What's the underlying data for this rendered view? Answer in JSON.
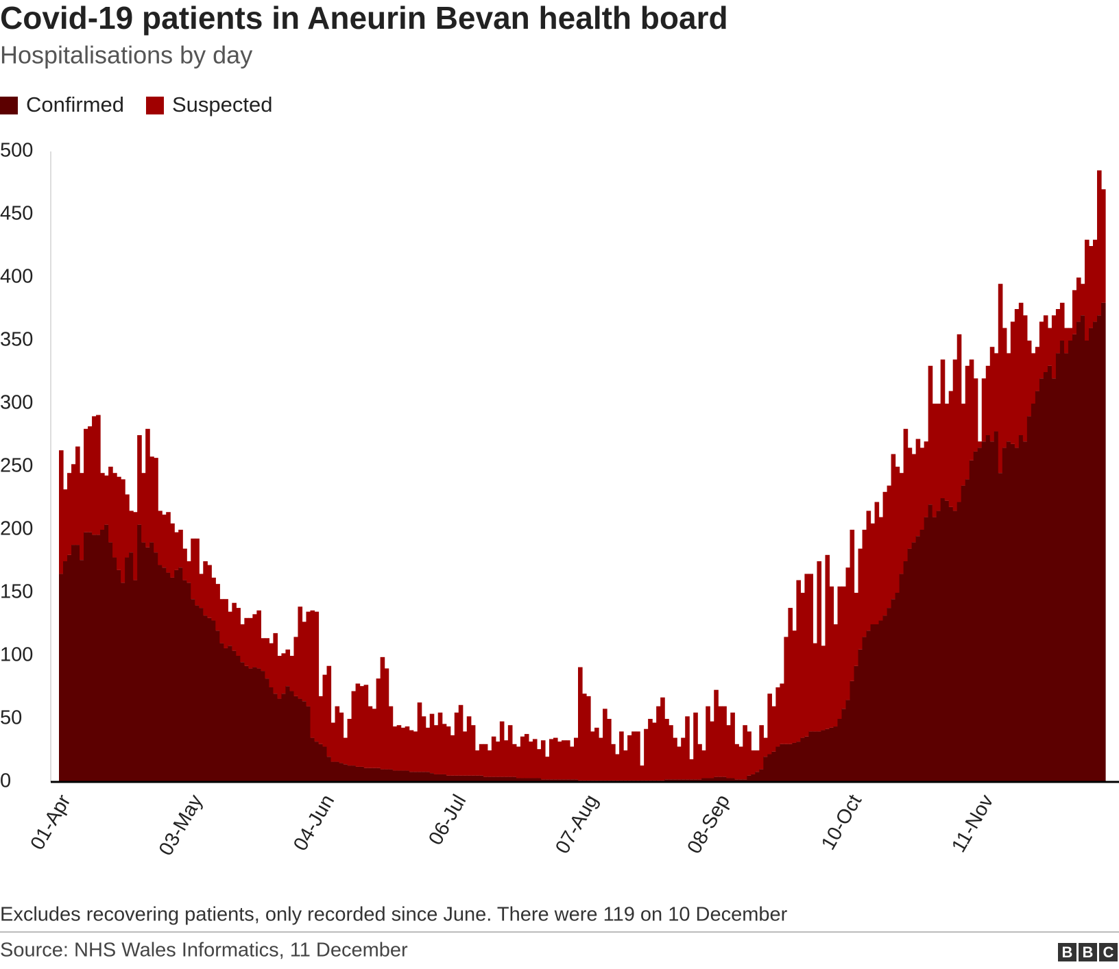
{
  "chart_data": {
    "type": "stacked_bar",
    "title": "Covid-19 patients in Aneurin Bevan health board",
    "subtitle": "Hospitalisations by day",
    "note": "Excludes recovering patients, only recorded since June. There were 119 on 10 December",
    "source": "Source: NHS Wales Informatics, 11 December",
    "categories": [
      "01-Apr",
      null,
      null,
      null,
      null,
      null,
      null,
      null,
      null,
      null,
      null,
      null,
      null,
      null,
      null,
      null,
      null,
      null,
      null,
      null,
      null,
      null,
      null,
      null,
      null,
      null,
      null,
      null,
      null,
      null,
      null,
      null,
      "03-May",
      null,
      null,
      null,
      null,
      null,
      null,
      null,
      null,
      null,
      null,
      null,
      null,
      null,
      null,
      null,
      null,
      null,
      null,
      null,
      null,
      null,
      null,
      null,
      null,
      null,
      null,
      null,
      null,
      null,
      null,
      null,
      "04-Jun",
      null,
      null,
      null,
      null,
      null,
      null,
      null,
      null,
      null,
      null,
      null,
      null,
      null,
      null,
      null,
      null,
      null,
      null,
      null,
      null,
      null,
      null,
      null,
      null,
      null,
      null,
      null,
      null,
      null,
      null,
      null,
      "06-Jul",
      null,
      null,
      null,
      null,
      null,
      null,
      null,
      null,
      null,
      null,
      null,
      null,
      null,
      null,
      null,
      null,
      null,
      null,
      null,
      null,
      null,
      null,
      null,
      null,
      null,
      null,
      null,
      null,
      null,
      null,
      null,
      "07-Aug",
      null,
      null,
      null,
      null,
      null,
      null,
      null,
      null,
      null,
      null,
      null,
      null,
      null,
      null,
      null,
      null,
      null,
      null,
      null,
      null,
      null,
      null,
      null,
      null,
      null,
      null,
      null,
      null,
      null,
      null,
      null,
      "08-Sep",
      null,
      null,
      null,
      null,
      null,
      null,
      null,
      null,
      null,
      null,
      null,
      null,
      null,
      null,
      null,
      null,
      null,
      null,
      null,
      null,
      null,
      null,
      null,
      null,
      null,
      null,
      null,
      null,
      null,
      null,
      null,
      "10-Oct",
      null,
      null,
      null,
      null,
      null,
      null,
      null,
      null,
      null,
      null,
      null,
      null,
      null,
      null,
      null,
      null,
      null,
      null,
      null,
      null,
      null,
      null,
      null,
      null,
      null,
      null,
      null,
      null,
      null,
      null,
      null,
      "11-Nov",
      null,
      null,
      null,
      null,
      null,
      null,
      null,
      null,
      null,
      null,
      null,
      null,
      null,
      null,
      null,
      null,
      null,
      null,
      null,
      null,
      null,
      null,
      null,
      null,
      null,
      null,
      null,
      null,
      null
    ],
    "series": [
      {
        "name": "Confirmed",
        "color": "#5c0000",
        "values": [
          165,
          175,
          180,
          188,
          188,
          176,
          198,
          198,
          196,
          196,
          200,
          204,
          190,
          178,
          168,
          158,
          178,
          182,
          160,
          204,
          190,
          186,
          190,
          182,
          172,
          170,
          166,
          162,
          168,
          170,
          160,
          158,
          145,
          140,
          138,
          132,
          130,
          128,
          120,
          110,
          106,
          108,
          104,
          100,
          95,
          92,
          90,
          91,
          90,
          88,
          82,
          75,
          70,
          66,
          70,
          76,
          72,
          68,
          66,
          64,
          60,
          35,
          32,
          30,
          28,
          20,
          16,
          16,
          15,
          14,
          13,
          13,
          12,
          12,
          11,
          11,
          11,
          11,
          10,
          10,
          10,
          9,
          9,
          9,
          9,
          8,
          8,
          8,
          8,
          8,
          7,
          6,
          6,
          6,
          5,
          5,
          5,
          5,
          5,
          5,
          5,
          5,
          5,
          4,
          4,
          4,
          4,
          4,
          4,
          4,
          4,
          3,
          3,
          3,
          3,
          3,
          3,
          2,
          2,
          2,
          2,
          2,
          2,
          2,
          2,
          2,
          1,
          1,
          1,
          1,
          1,
          1,
          1,
          1,
          1,
          1,
          1,
          1,
          1,
          1,
          1,
          1,
          1,
          1,
          1,
          1,
          1,
          2,
          2,
          2,
          2,
          2,
          2,
          2,
          2,
          2,
          3,
          3,
          3,
          4,
          4,
          4,
          3,
          3,
          2,
          2,
          2,
          5,
          6,
          8,
          10,
          20,
          22,
          24,
          28,
          30,
          30,
          30,
          31,
          32,
          35,
          36,
          40,
          40,
          40,
          41,
          42,
          43,
          44,
          50,
          58,
          65,
          80,
          92,
          105,
          115,
          120,
          125,
          125,
          128,
          132,
          138,
          145,
          150,
          165,
          175,
          185,
          190,
          195,
          200,
          210,
          220,
          210,
          215,
          225,
          223,
          218,
          215,
          222,
          235,
          240,
          255,
          262,
          265,
          270,
          275,
          270,
          278,
          245,
          265,
          270,
          268,
          265,
          275,
          270,
          290,
          300,
          310,
          320,
          325,
          330,
          320,
          340,
          350,
          340,
          350,
          355,
          365,
          370,
          350,
          360,
          365,
          370,
          380
        ]
      },
      {
        "name": "Suspected",
        "color": "#a00000",
        "values": [
          98,
          57,
          65,
          64,
          78,
          69,
          82,
          84,
          94,
          95,
          45,
          39,
          60,
          67,
          74,
          82,
          50,
          33,
          54,
          71,
          55,
          94,
          68,
          75,
          43,
          42,
          48,
          43,
          30,
          30,
          25,
          17,
          48,
          53,
          27,
          43,
          42,
          34,
          37,
          35,
          39,
          27,
          38,
          38,
          30,
          38,
          40,
          42,
          46,
          26,
          32,
          35,
          48,
          34,
          32,
          29,
          28,
          47,
          73,
          63,
          75,
          101,
          103,
          38,
          57,
          72,
          31,
          44,
          40,
          21,
          37,
          59,
          66,
          64,
          66,
          49,
          47,
          71,
          89,
          80,
          50,
          35,
          36,
          34,
          35,
          33,
          32,
          55,
          44,
          35,
          47,
          39,
          49,
          40,
          39,
          32,
          50,
          56,
          35,
          47,
          40,
          20,
          25,
          26,
          21,
          32,
          28,
          44,
          29,
          41,
          26,
          25,
          33,
          35,
          29,
          31,
          23,
          31,
          18,
          32,
          33,
          30,
          31,
          31,
          26,
          33,
          90,
          69,
          67,
          39,
          42,
          34,
          57,
          49,
          29,
          21,
          39,
          24,
          36,
          39,
          39,
          12,
          41,
          49,
          46,
          59,
          66,
          48,
          43,
          33,
          26,
          33,
          50,
          16,
          53,
          28,
          22,
          57,
          45,
          69,
          56,
          56,
          42,
          52,
          28,
          26,
          43,
          35,
          19,
          17,
          35,
          15,
          48,
          36,
          47,
          48,
          85,
          108,
          89,
          128,
          115,
          129,
          125,
          70,
          135,
          67,
          138,
          112,
          81,
          105,
          97,
          105,
          120,
          58,
          80,
          85,
          95,
          80,
          97,
          82,
          98,
          97,
          115,
          100,
          80,
          105,
          80,
          70,
          77,
          65,
          60,
          110,
          90,
          85,
          110,
          77,
          92,
          120,
          133,
          65,
          90,
          80,
          58,
          5,
          50,
          55,
          75,
          62,
          150,
          95,
          70,
          97,
          110,
          105,
          100,
          60,
          40,
          35,
          45,
          45,
          30,
          50,
          35,
          30,
          20,
          10,
          35,
          35,
          25,
          80,
          65,
          65,
          115,
          90
        ]
      }
    ],
    "ylim": [
      0,
      500
    ],
    "yticks": [
      0,
      50,
      100,
      150,
      200,
      250,
      300,
      350,
      400,
      450,
      500
    ]
  },
  "logo": [
    "B",
    "B",
    "C"
  ]
}
